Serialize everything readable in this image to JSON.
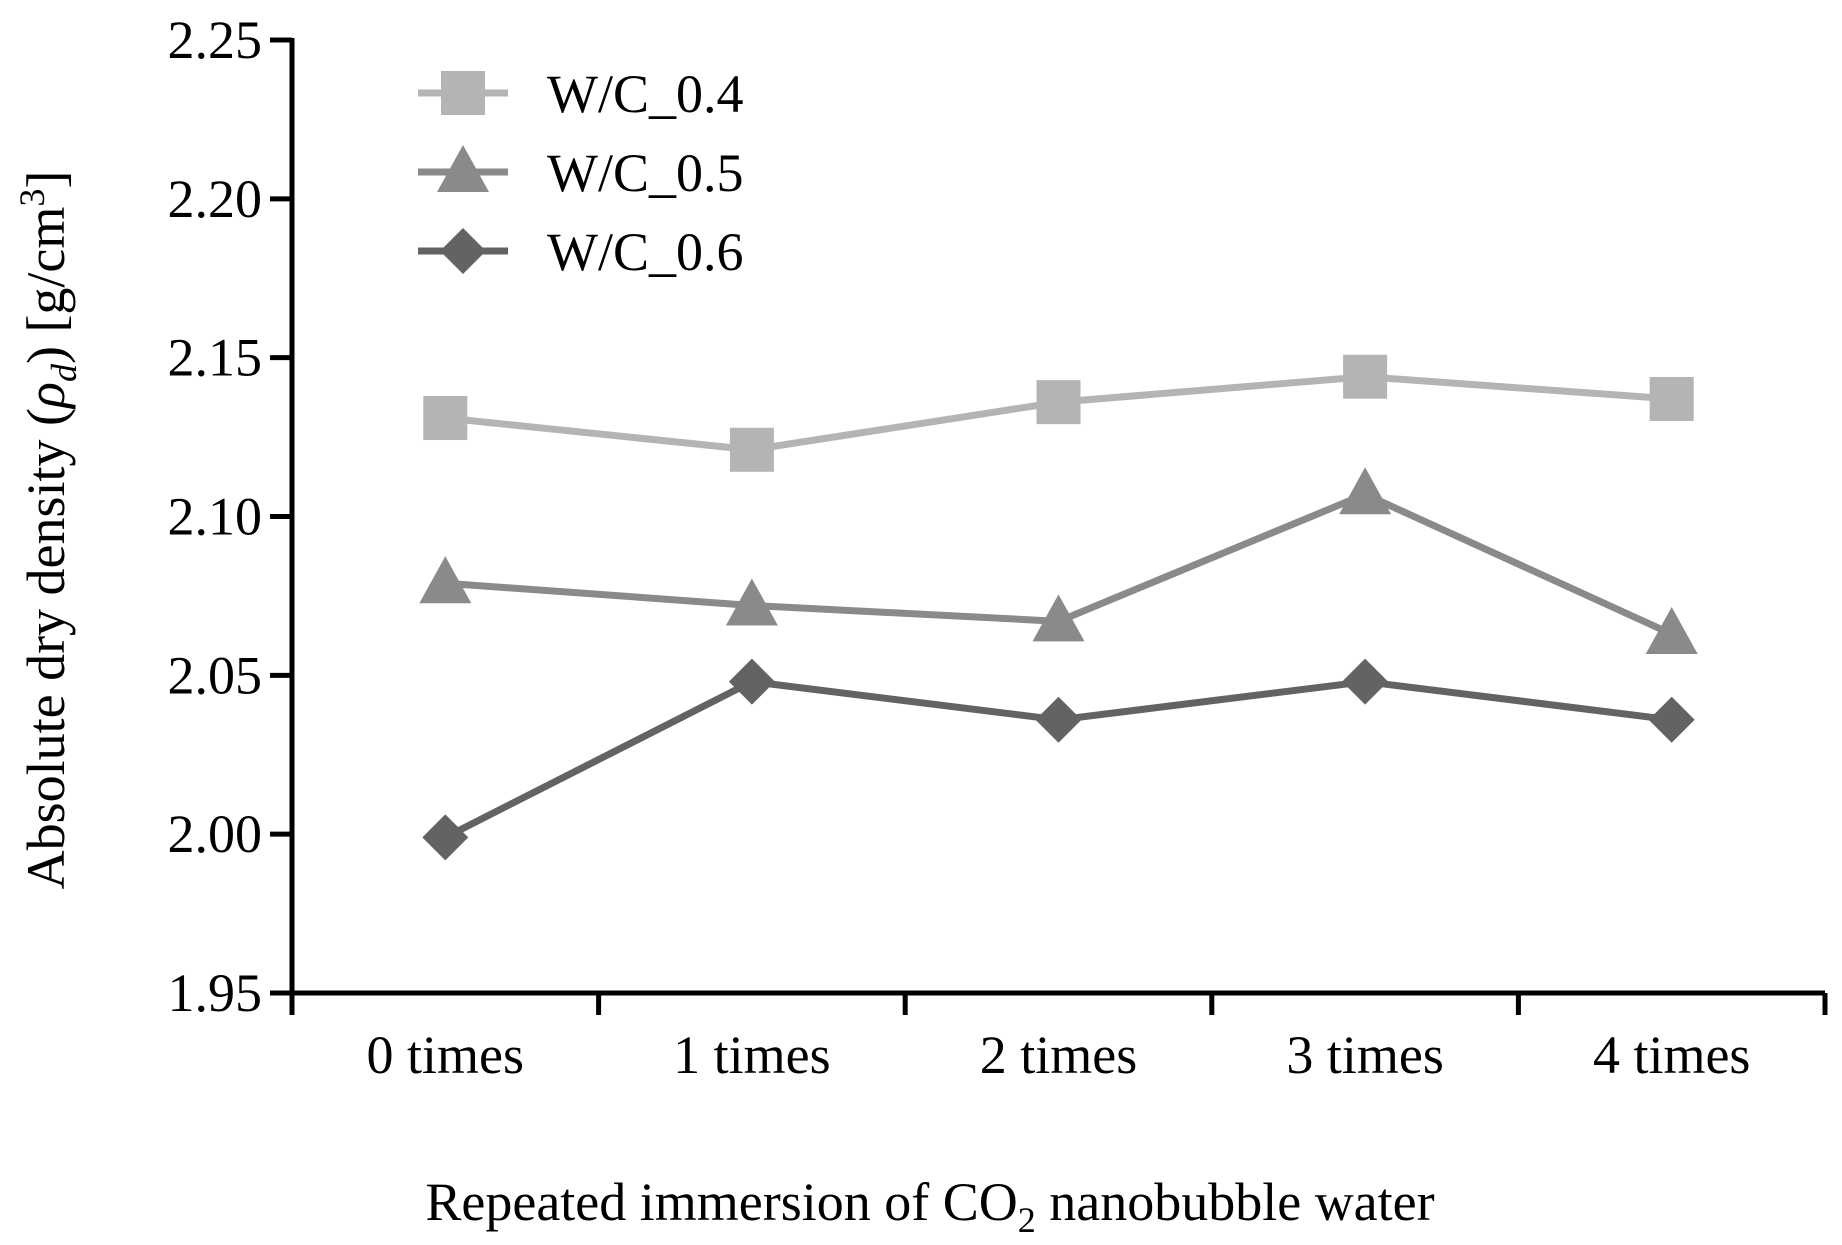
{
  "chart_data": {
    "type": "line",
    "categories": [
      "0 times",
      "1 times",
      "2 times",
      "3 times",
      "4 times"
    ],
    "series": [
      {
        "name": "W/C_0.4",
        "marker": "square",
        "color": "#b4b4b4",
        "values": [
          2.131,
          2.121,
          2.136,
          2.144,
          2.137
        ]
      },
      {
        "name": "W/C_0.5",
        "marker": "triangle",
        "color": "#8a8a8a",
        "values": [
          2.079,
          2.072,
          2.067,
          2.107,
          2.063
        ]
      },
      {
        "name": "W/C_0.6",
        "marker": "diamond",
        "color": "#636363",
        "values": [
          1.999,
          2.048,
          2.036,
          2.048,
          2.036
        ]
      }
    ],
    "xlabel": {
      "pre": "Repeated immersion of CO",
      "sub": "2",
      "post": " nanobubble water"
    },
    "ylabel": {
      "pre": "Absolute dry density (",
      "symbol": "ρ",
      "sub": "d",
      "mid": ") [g/cm",
      "sup": "3",
      "post": "]"
    },
    "ylim": [
      1.95,
      2.25
    ],
    "yticks": [
      "1.95",
      "2.00",
      "2.05",
      "2.10",
      "2.15",
      "2.20",
      "2.25"
    ],
    "grid": false,
    "legend_position": "top-left"
  }
}
